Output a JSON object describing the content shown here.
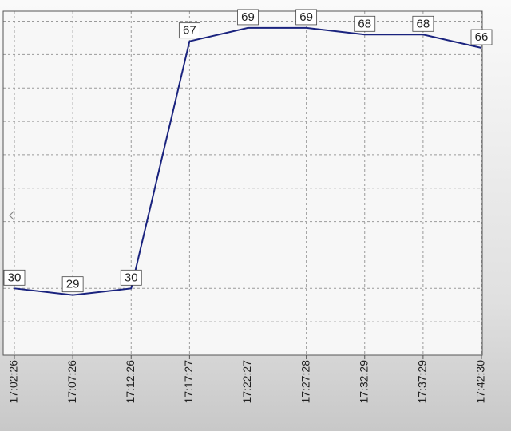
{
  "chart_data": {
    "type": "line",
    "categories": [
      "17:02:26",
      "17:07:26",
      "17:12:26",
      "17:17:27",
      "17:22:27",
      "17:27:28",
      "17:32:29",
      "17:37:29",
      "17:42:30"
    ],
    "series": [
      {
        "color": "#1a237e",
        "values": [
          30,
          29,
          30,
          67,
          69,
          69,
          68,
          68,
          66
        ]
      }
    ],
    "ylim": [
      20,
      71.5
    ],
    "yticks": [
      20,
      25,
      30,
      35,
      40,
      45,
      50,
      55,
      60,
      65,
      70
    ],
    "grid": true,
    "data_labels": true
  }
}
